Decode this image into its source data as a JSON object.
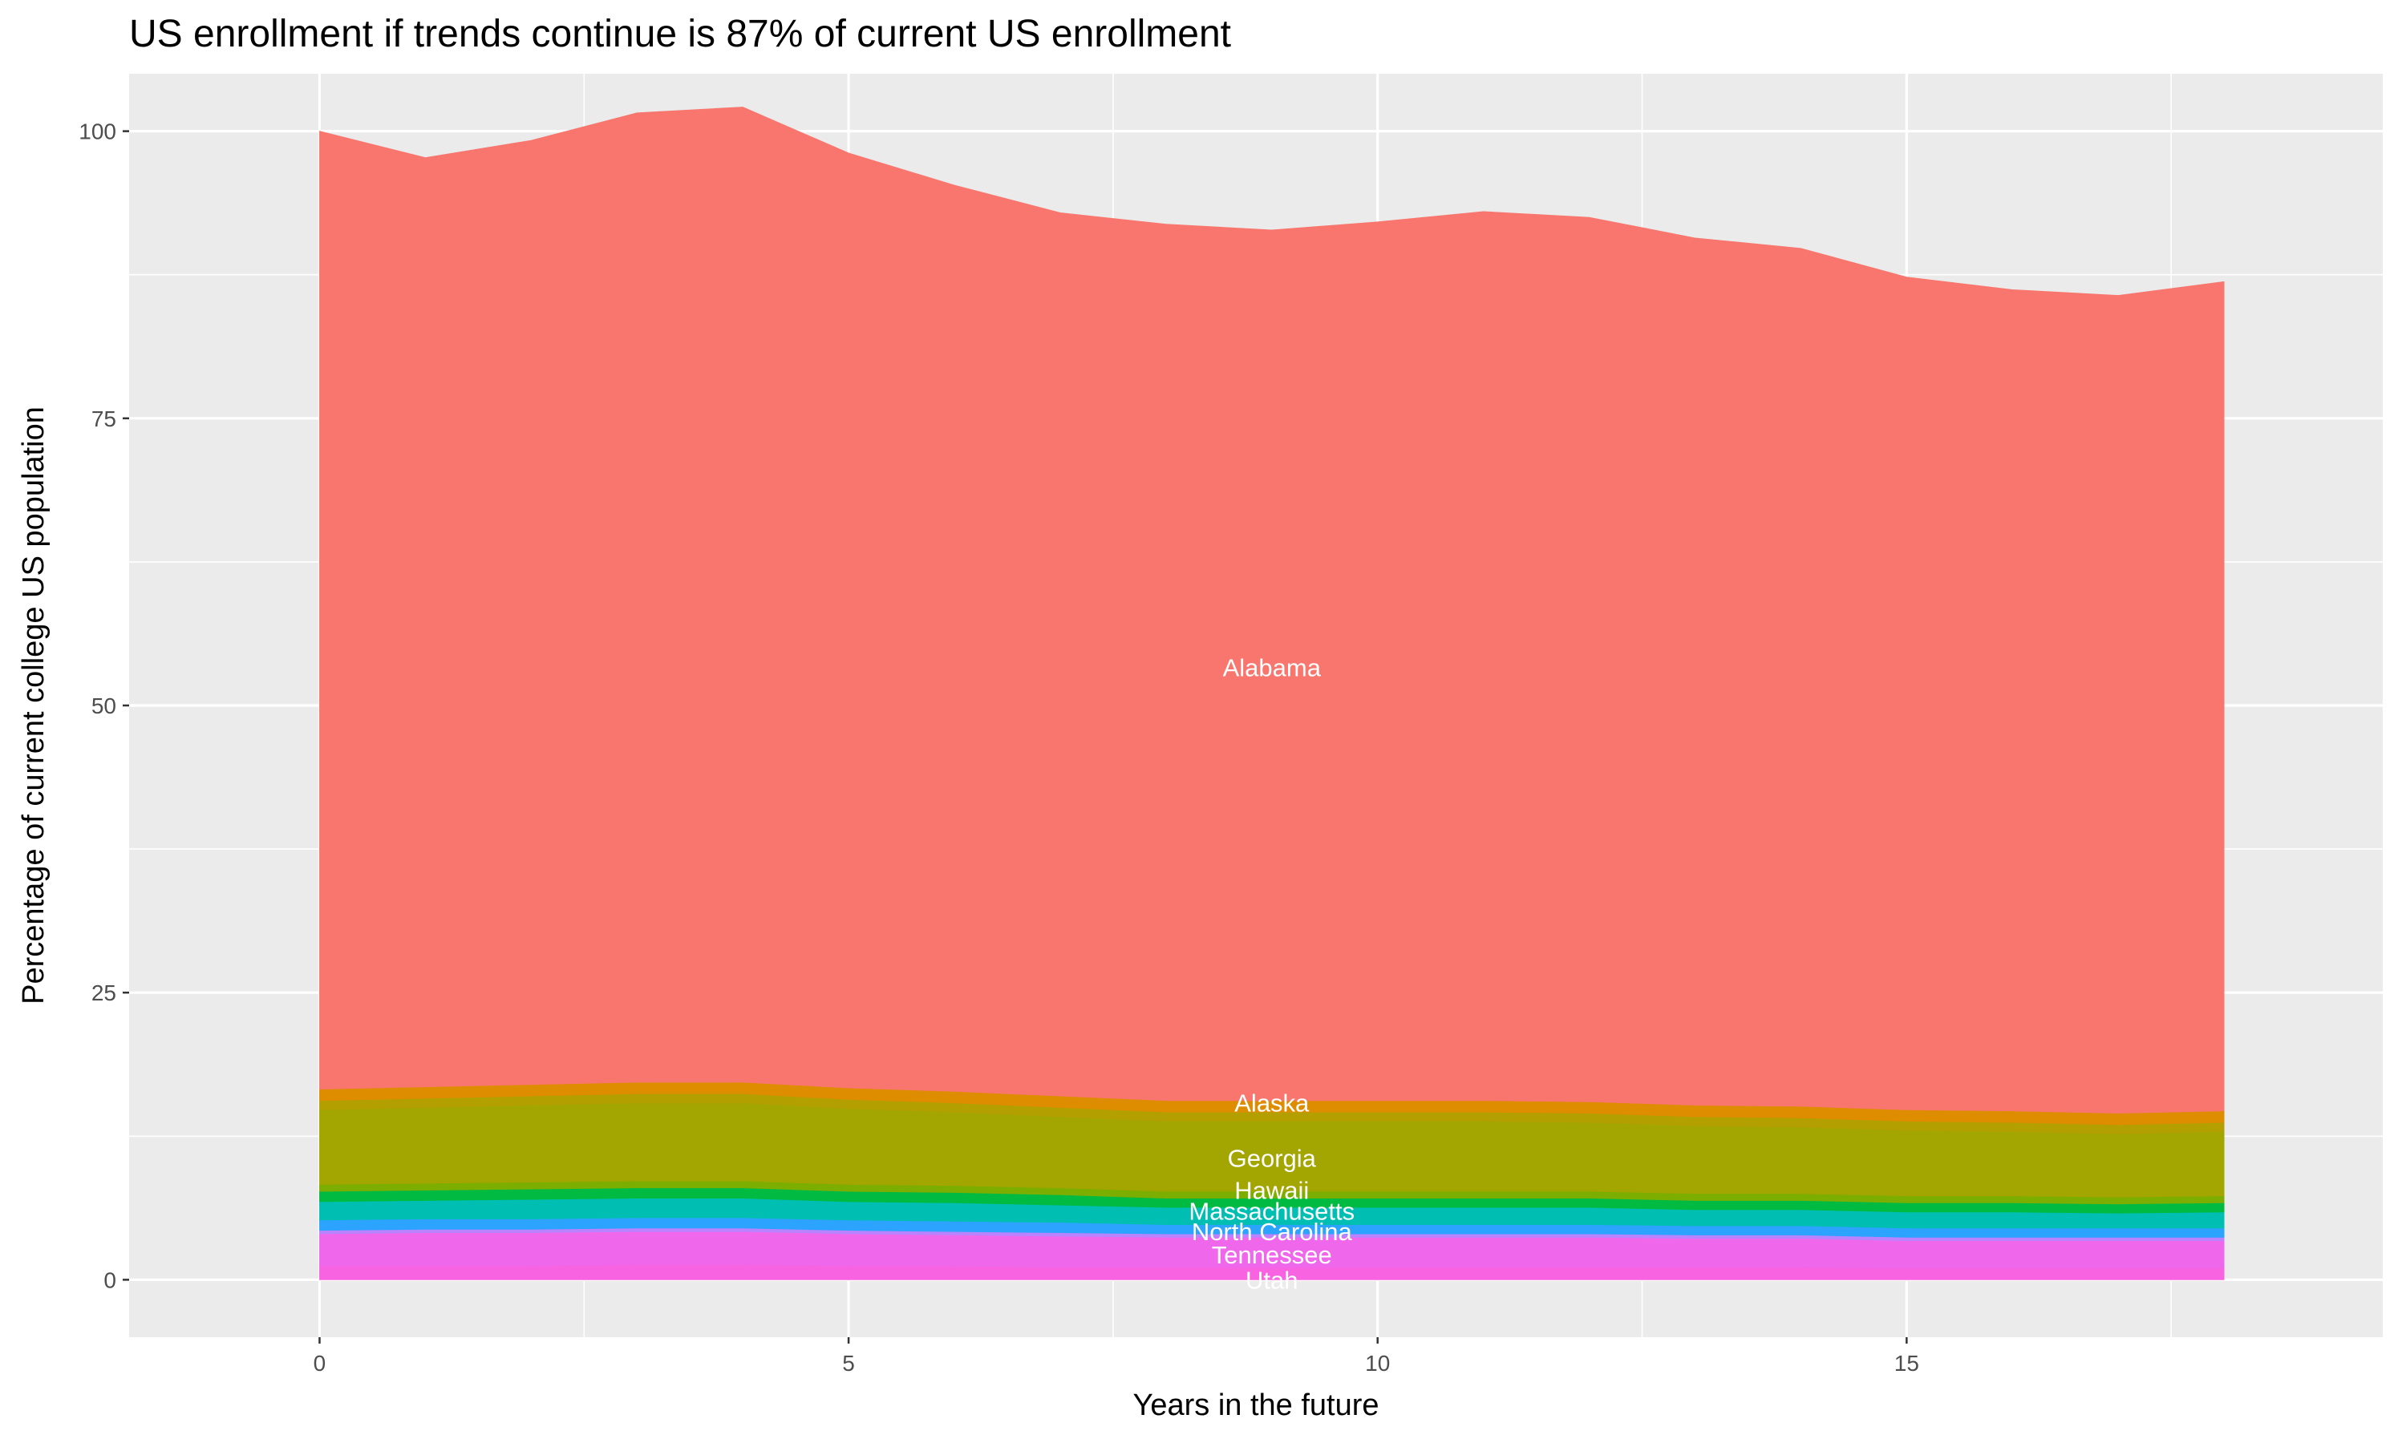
{
  "chart_data": {
    "type": "area",
    "stacked": true,
    "title": "US enrollment if trends continue is 87% of current US enrollment",
    "xlabel": "Years in the future",
    "ylabel": "Percentage of current college US population",
    "xlim": [
      -1.8,
      19.5
    ],
    "ylim": [
      -5,
      105
    ],
    "xticks": [
      0,
      5,
      10,
      15
    ],
    "yticks": [
      0,
      25,
      50,
      75,
      100
    ],
    "grid": true,
    "legend": "none",
    "x": [
      0,
      1,
      2,
      3,
      4,
      5,
      6,
      7,
      8,
      9,
      10,
      11,
      12,
      13,
      14,
      15,
      16,
      17,
      18
    ],
    "series": [
      {
        "name": "Utah",
        "color": "#f763e0",
        "values": [
          1.2,
          1.2,
          1.2,
          1.3,
          1.3,
          1.2,
          1.2,
          1.1,
          1.1,
          1.1,
          1.1,
          1.1,
          1.1,
          1.1,
          1.1,
          1.0,
          1.0,
          1.0,
          1.0
        ]
      },
      {
        "name": "Tennessee",
        "color": "#ef67eb",
        "values": [
          2.8,
          2.9,
          2.9,
          2.9,
          2.9,
          2.8,
          2.7,
          2.7,
          2.6,
          2.6,
          2.6,
          2.6,
          2.6,
          2.5,
          2.5,
          2.4,
          2.4,
          2.4,
          2.4
        ]
      },
      {
        "color": "#b983ff",
        "values": [
          0.3,
          0.3,
          0.3,
          0.3,
          0.3,
          0.3,
          0.3,
          0.3,
          0.3,
          0.3,
          0.3,
          0.3,
          0.3,
          0.3,
          0.3,
          0.3,
          0.3,
          0.3,
          0.3
        ]
      },
      {
        "name": "North Carolina",
        "color": "#2ba3ff",
        "values": [
          0.9,
          0.9,
          0.9,
          0.9,
          0.9,
          0.9,
          0.9,
          0.9,
          0.8,
          0.8,
          0.8,
          0.8,
          0.8,
          0.8,
          0.8,
          0.8,
          0.8,
          0.8,
          0.8
        ]
      },
      {
        "name": "Massachusetts",
        "color": "#00bfb2",
        "values": [
          1.6,
          1.6,
          1.7,
          1.7,
          1.7,
          1.6,
          1.6,
          1.5,
          1.5,
          1.5,
          1.5,
          1.5,
          1.5,
          1.4,
          1.4,
          1.4,
          1.4,
          1.3,
          1.4
        ]
      },
      {
        "color": "#00ba42",
        "values": [
          0.9,
          0.9,
          0.9,
          0.9,
          0.9,
          0.9,
          0.9,
          0.9,
          0.8,
          0.8,
          0.8,
          0.8,
          0.8,
          0.8,
          0.8,
          0.8,
          0.8,
          0.8,
          0.8
        ]
      },
      {
        "name": "Hawaii",
        "color": "#7cae00",
        "values": [
          0.6,
          0.6,
          0.6,
          0.6,
          0.6,
          0.6,
          0.6,
          0.6,
          0.6,
          0.6,
          0.6,
          0.6,
          0.6,
          0.6,
          0.6,
          0.6,
          0.6,
          0.6,
          0.6
        ]
      },
      {
        "name": "Georgia",
        "color": "#a3a500",
        "values": [
          6.5,
          6.6,
          6.7,
          6.8,
          6.8,
          6.6,
          6.4,
          6.2,
          6.1,
          6.1,
          6.1,
          6.1,
          6.0,
          5.9,
          5.8,
          5.7,
          5.6,
          5.5,
          5.6
        ]
      },
      {
        "color": "#b39f00",
        "values": [
          0.8,
          0.8,
          0.8,
          0.8,
          0.8,
          0.8,
          0.8,
          0.8,
          0.8,
          0.8,
          0.8,
          0.8,
          0.8,
          0.8,
          0.8,
          0.8,
          0.8,
          0.8,
          0.8
        ]
      },
      {
        "name": "Alaska",
        "color": "#de8c00",
        "values": [
          1.0,
          1.0,
          1.0,
          1.0,
          1.0,
          1.0,
          1.0,
          1.0,
          1.0,
          1.0,
          1.0,
          1.0,
          1.0,
          1.0,
          1.0,
          1.0,
          1.0,
          1.0,
          1.0
        ]
      },
      {
        "name": "Alabama",
        "color": "#f8766d",
        "values": [
          83.4,
          80.9,
          82.2,
          84.4,
          84.9,
          81.4,
          78.9,
          76.9,
          76.3,
          75.8,
          76.5,
          77.4,
          77.0,
          75.5,
          74.7,
          72.5,
          71.5,
          71.2,
          72.2
        ]
      }
    ],
    "labels": [
      {
        "text": "Alabama",
        "x": 9,
        "y": 53.3
      },
      {
        "text": "Alaska",
        "x": 9,
        "y": 15.4
      },
      {
        "text": "Georgia",
        "x": 9,
        "y": 10.6
      },
      {
        "text": "Hawaii",
        "x": 9,
        "y": 7.8
      },
      {
        "text": "Massachusetts",
        "x": 9,
        "y": 6.0
      },
      {
        "text": "North Carolina",
        "x": 9,
        "y": 4.2
      },
      {
        "text": "Tennessee",
        "x": 9,
        "y": 2.2
      },
      {
        "text": "Utah",
        "x": 9,
        "y": 0
      }
    ]
  }
}
